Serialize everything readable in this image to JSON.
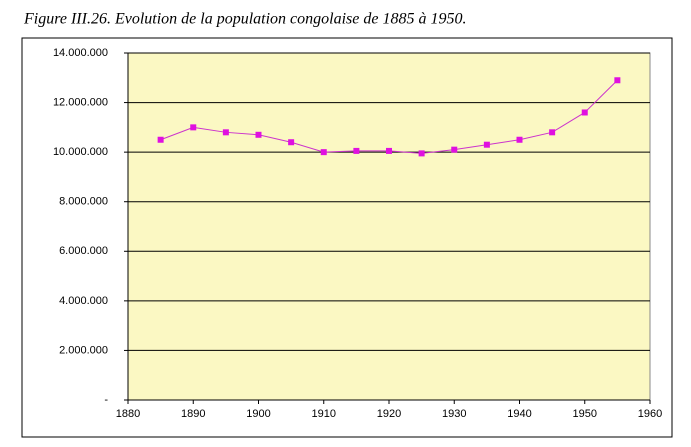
{
  "chart_data": {
    "type": "line",
    "title": "Figure III.26. Evolution de la population congolaise de 1885 à 1950.",
    "x": [
      1885,
      1890,
      1895,
      1900,
      1905,
      1910,
      1915,
      1920,
      1925,
      1930,
      1935,
      1940,
      1945,
      1950,
      1955
    ],
    "values": [
      10500000,
      11000000,
      10800000,
      10700000,
      10400000,
      10000000,
      10050000,
      10050000,
      9950000,
      10100000,
      10300000,
      10500000,
      10800000,
      11600000,
      12900000
    ],
    "color": "#cc33cc",
    "marker_color": "#e010e0",
    "plot_background": "#fbf8c3",
    "xlim": [
      1880,
      1960
    ],
    "xticks": [
      1880,
      1890,
      1900,
      1910,
      1920,
      1930,
      1940,
      1950,
      1960
    ],
    "ylim": [
      0,
      14000000
    ],
    "yticks": [
      {
        "value": 0,
        "label": "-"
      },
      {
        "value": 2000000,
        "label": "2.000.000"
      },
      {
        "value": 4000000,
        "label": "4.000.000"
      },
      {
        "value": 6000000,
        "label": "6.000.000"
      },
      {
        "value": 8000000,
        "label": "8.000.000"
      },
      {
        "value": 10000000,
        "label": "10.000.000"
      },
      {
        "value": 12000000,
        "label": "12.000.000"
      },
      {
        "value": 14000000,
        "label": "14.000.000"
      }
    ],
    "grid": true
  }
}
